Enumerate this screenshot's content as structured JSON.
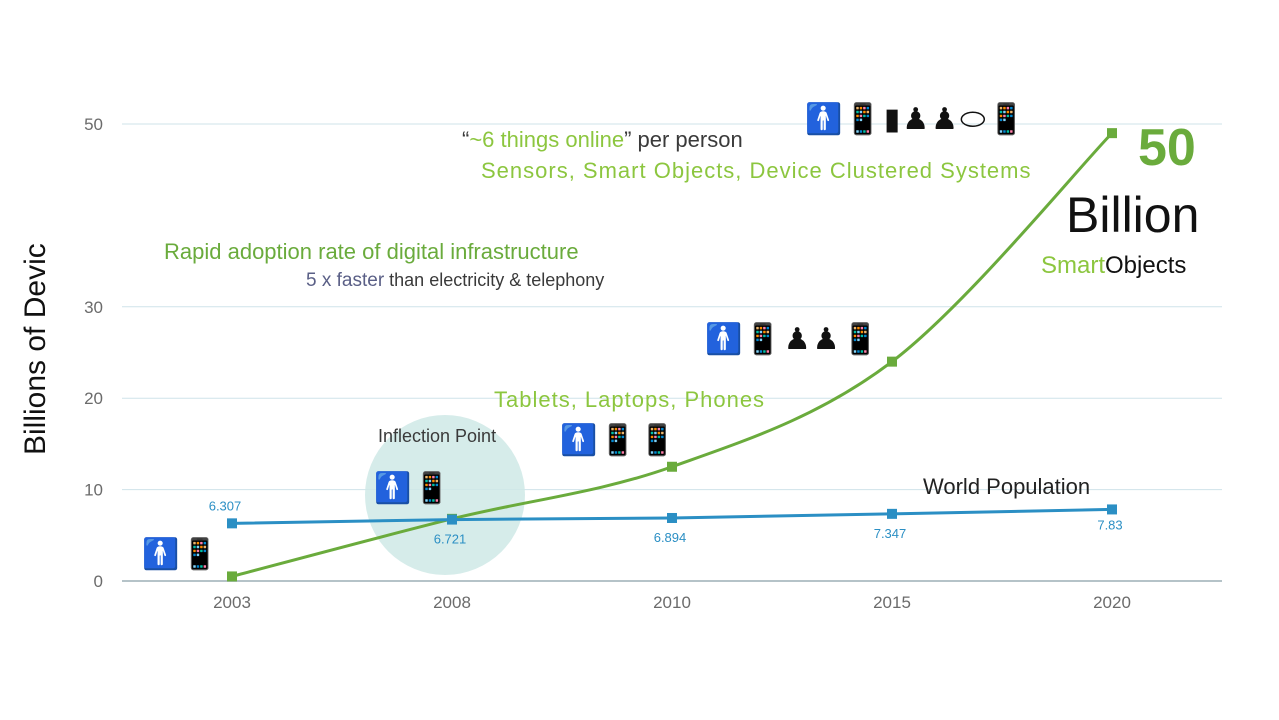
{
  "chart_data": {
    "type": "line",
    "ylabel": "Billions of Devic",
    "categories": [
      "2003",
      "2008",
      "2010",
      "2015",
      "2020"
    ],
    "yticks": [
      0,
      10,
      20,
      30,
      50
    ],
    "ylim": [
      0,
      50
    ],
    "grid": true,
    "series": [
      {
        "name": "World Population",
        "color": "#2b8fc4",
        "values": [
          6.307,
          6.721,
          6.894,
          7.347,
          7.83
        ],
        "labels": [
          "6.307",
          "6.721",
          "6.894",
          "7.347",
          "7.83"
        ]
      },
      {
        "name": "",
        "color": "#6aab3c",
        "values": [
          0.5,
          6.8,
          12.5,
          24,
          49
        ]
      }
    ]
  },
  "annotations": {
    "things_quote_open": "“",
    "things_online": "~6 things online",
    "things_quote_close": "”",
    "per_person": "per person",
    "sensors": "Sensors, Smart Objects, Device Clustered Systems",
    "big_number": "50",
    "billion": "Billion",
    "smart": "Smart",
    "objects": "Objects",
    "rapid": "Rapid adoption rate of digital infrastructure",
    "faster": "5 x faster",
    "than": " than electricity & telephony",
    "tablets": "Tablets, Laptops, Phones",
    "inflection": "Inflection Point",
    "world_population": "World Population"
  },
  "icon_groups": {
    "g2003": "🚹📱",
    "g2008": "🚹📱",
    "g2010": "🚹📱📱",
    "g2015": "🚹📱♟♟📱",
    "g2020": "🚹📱▮♟♟⬭📱"
  },
  "colors": {
    "green": "#8cc63f",
    "dark_green": "#6aab3c",
    "blue": "#2b8fc4",
    "inflection_fill": "#cfe9e6"
  }
}
